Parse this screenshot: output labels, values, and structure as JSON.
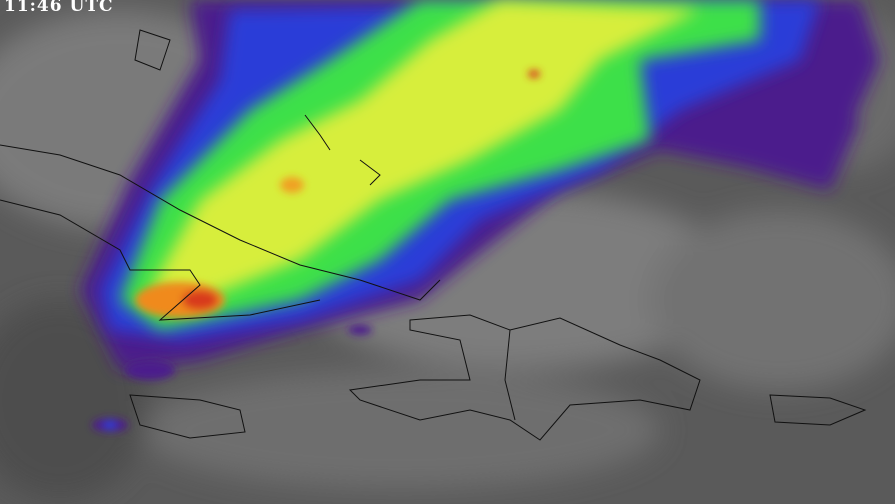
{
  "overlay": {
    "timestamp": "11:46 UTC"
  },
  "colors": {
    "background": "#5a5a5a",
    "cloud_gray": "#8a8a8a",
    "purple": "#4b1a8c",
    "blue": "#2a3cd8",
    "green": "#3ee04a",
    "yellow": "#f2f23a",
    "orange": "#f08a1a",
    "red": "#d83a1a",
    "coastline": "#111111"
  }
}
